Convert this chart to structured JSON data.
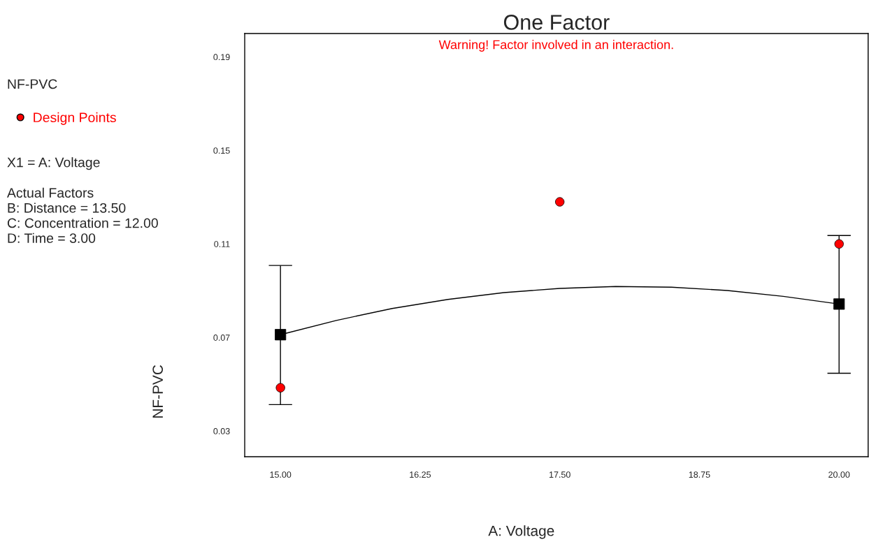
{
  "chart_data": {
    "type": "scatter",
    "title": "One Factor",
    "xlabel": "A: Voltage",
    "ylabel": "NF-PVC",
    "annotations": [
      "Warning! Factor involved in an interaction.",
      "NF-PVC",
      "X1 = A: Voltage",
      "Actual Factors\nB: Distance = 13.50\nC: Concentration = 12.00\nD: Time = 3.00"
    ],
    "xlim": [
      14.68,
      20.26
    ],
    "ylim": [
      0.019,
      0.2
    ],
    "xticks": [
      {
        "value": 15,
        "label": "15.00"
      },
      {
        "value": 16.25,
        "label": "16.25"
      },
      {
        "value": 17.5,
        "label": "17.50"
      },
      {
        "value": 18.75,
        "label": "18.75"
      },
      {
        "value": 20,
        "label": "20.00"
      }
    ],
    "yticks": [
      0.03,
      0.07,
      0.11,
      0.15,
      0.19
    ],
    "grid": false,
    "legend": "left",
    "series": [
      {
        "name": "Design Points",
        "color": "#ff0000",
        "marker": "circle",
        "x": [
          15,
          17.5,
          20
        ],
        "values": [
          0.0485,
          0.128,
          0.11
        ]
      },
      {
        "type": "line",
        "color": "#000000",
        "marker": "none",
        "line_style": "solid",
        "x": [
          15,
          15.5,
          16,
          16.5,
          17,
          17.5,
          18,
          18.5,
          19,
          19.5,
          20
        ],
        "values": [
          0.0712,
          0.0773,
          0.0824,
          0.0863,
          0.0892,
          0.091,
          0.0918,
          0.0915,
          0.0901,
          0.0876,
          0.0843
        ]
      },
      {
        "type": "scatter",
        "color": "#000000",
        "marker": "square",
        "x": [
          15,
          20
        ],
        "values": [
          0.0712,
          0.0843
        ],
        "errors": [
          [
            0.0413,
            0.1008
          ],
          [
            0.0547,
            0.1136
          ]
        ]
      }
    ]
  }
}
